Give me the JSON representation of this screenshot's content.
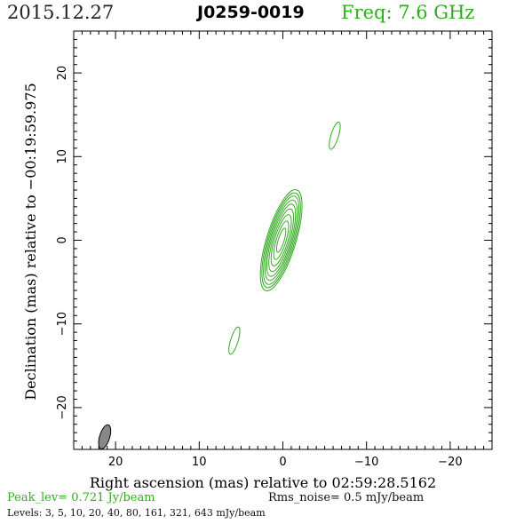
{
  "header": {
    "date": "2015.12.27",
    "source": "J0259-0019",
    "frequency": "Freq: 7.6 GHz"
  },
  "footer": {
    "peak": "Peak_lev=  0.721 Jy/beam",
    "rms": "Rms_noise=  0.5 mJy/beam",
    "levels": "Levels:   3,   5,  10,  20,  40,  80, 161, 321, 643 mJy/beam"
  },
  "colors": {
    "contour": "#33aa22",
    "beam": "#888888",
    "header_freq": "#33aa22"
  },
  "chart_data": {
    "type": "contour",
    "title": "J0259-0019",
    "xlabel": "Right ascension (mas) relative to 02:59:28.5162",
    "ylabel": "Declination (mas) relative to −00:19:59.975",
    "xlim": [
      25,
      -25
    ],
    "ylim": [
      -25,
      25
    ],
    "x_ticks": [
      20,
      10,
      0,
      -10,
      -20
    ],
    "x_tick_labels": [
      "20",
      "10",
      "0",
      "−10",
      "−20"
    ],
    "y_ticks": [
      20,
      10,
      0,
      -10,
      -20
    ],
    "y_tick_labels": [
      "20",
      "10",
      "0",
      "−10",
      "−20"
    ],
    "contour_levels_mJy": [
      3,
      5,
      10,
      20,
      40,
      80,
      161,
      321,
      643
    ],
    "peak_Jy_per_beam": 0.721,
    "rms_mJy_per_beam": 0.5,
    "core": {
      "ra": 0.2,
      "dec": 0.0,
      "angle_deg": 17,
      "semi_major": [
        6.3,
        5.9,
        5.5,
        5.0,
        4.5,
        3.9,
        3.2,
        2.4,
        1.5
      ],
      "semi_minor": [
        1.75,
        1.6,
        1.45,
        1.3,
        1.15,
        0.98,
        0.8,
        0.58,
        0.35
      ]
    },
    "blobs": [
      {
        "ra": -6.2,
        "dec": 12.5,
        "semi_major": 1.7,
        "semi_minor": 0.45,
        "angle_deg": 17
      },
      {
        "ra": 5.8,
        "dec": -12.0,
        "semi_major": 1.7,
        "semi_minor": 0.45,
        "angle_deg": 17
      }
    ],
    "beam": {
      "ra": 21.3,
      "dec": -23.5,
      "semi_major": 1.5,
      "semi_minor": 0.6,
      "angle_deg": 17
    }
  }
}
